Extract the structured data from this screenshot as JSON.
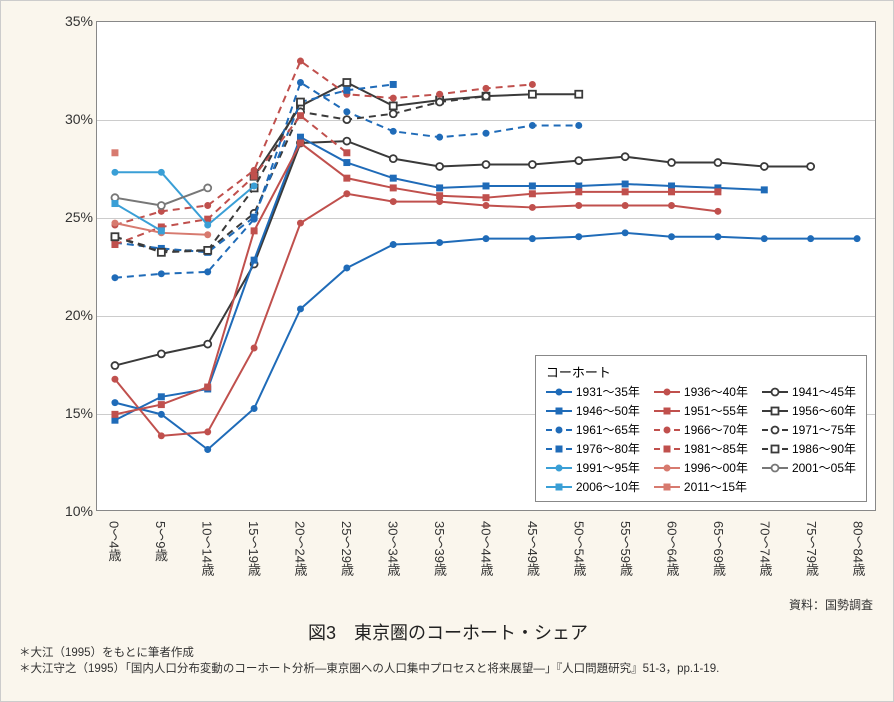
{
  "chart": {
    "type": "line",
    "background_color": "#faf6ed",
    "plot_background": "#ffffff",
    "grid_color": "#cccccc",
    "border_color": "#888888",
    "ylim": [
      10,
      35
    ],
    "ytick_step": 5,
    "yticks": [
      "10%",
      "15%",
      "20%",
      "25%",
      "30%",
      "35%"
    ],
    "x_categories": [
      "0～4歳",
      "5～9歳",
      "10～14歳",
      "15～19歳",
      "20～24歳",
      "25～29歳",
      "30～34歳",
      "35～39歳",
      "40～44歳",
      "45～49歳",
      "50～54歳",
      "55～59歳",
      "60～64歳",
      "65～69歳",
      "70～74歳",
      "75～79歳",
      "80～84歳"
    ],
    "legend_title": "コーホート",
    "title_fontsize": 18,
    "label_fontsize": 13,
    "line_width": 2,
    "marker_size": 7,
    "series": [
      {
        "label": "1931～35年",
        "color": "#1f6bb8",
        "dash": "solid",
        "marker": "circle-filled",
        "values": [
          15.5,
          14.9,
          13.1,
          15.2,
          20.3,
          22.4,
          23.6,
          23.7,
          23.9,
          23.9,
          24.0,
          24.2,
          24.0,
          24.0,
          23.9,
          23.9,
          23.9
        ]
      },
      {
        "label": "1936～40年",
        "color": "#c0504d",
        "dash": "solid",
        "marker": "circle-filled",
        "values": [
          16.7,
          13.8,
          14.0,
          18.3,
          24.7,
          26.2,
          25.8,
          25.8,
          25.6,
          25.5,
          25.6,
          25.6,
          25.6,
          25.3,
          null,
          null,
          null
        ]
      },
      {
        "label": "1941～45年",
        "color": "#3a3a3a",
        "dash": "solid",
        "marker": "circle-open",
        "values": [
          17.4,
          18.0,
          18.5,
          22.6,
          28.8,
          28.9,
          28.0,
          27.6,
          27.7,
          27.7,
          27.9,
          28.1,
          27.8,
          27.8,
          27.6,
          27.6,
          null
        ]
      },
      {
        "label": "1946～50年",
        "color": "#1f6bb8",
        "dash": "solid",
        "marker": "square-filled",
        "values": [
          14.6,
          15.8,
          16.2,
          22.8,
          29.1,
          27.8,
          27.0,
          26.5,
          26.6,
          26.6,
          26.6,
          26.7,
          26.6,
          26.5,
          26.4,
          null,
          null
        ]
      },
      {
        "label": "1951～55年",
        "color": "#c0504d",
        "dash": "solid",
        "marker": "square-filled",
        "values": [
          14.9,
          15.4,
          16.3,
          24.3,
          28.8,
          27.0,
          26.5,
          26.1,
          26.0,
          26.2,
          26.3,
          26.3,
          26.3,
          26.3,
          null,
          null,
          null
        ]
      },
      {
        "label": "1956～60年",
        "color": "#3a3a3a",
        "dash": "solid",
        "marker": "square-open",
        "values": [
          null,
          null,
          null,
          27.1,
          30.7,
          31.9,
          30.7,
          31.0,
          31.2,
          31.3,
          31.3,
          null,
          null,
          null,
          null,
          null,
          null
        ]
      },
      {
        "label": "1961～65年",
        "color": "#1f6bb8",
        "dash": "dashed",
        "marker": "circle-filled",
        "values": [
          21.9,
          22.1,
          22.2,
          24.9,
          31.9,
          30.4,
          29.4,
          29.1,
          29.3,
          29.7,
          29.7,
          null,
          null,
          null,
          null,
          null,
          null
        ]
      },
      {
        "label": "1966～70年",
        "color": "#c0504d",
        "dash": "dashed",
        "marker": "circle-filled",
        "values": [
          24.6,
          25.3,
          25.6,
          27.4,
          33.0,
          31.3,
          31.1,
          31.3,
          31.6,
          31.8,
          null,
          null,
          null,
          null,
          null,
          null,
          null
        ]
      },
      {
        "label": "1971～75年",
        "color": "#3a3a3a",
        "dash": "dashed",
        "marker": "circle-open",
        "values": [
          24.0,
          23.3,
          23.3,
          25.2,
          30.4,
          30.0,
          30.3,
          30.9,
          31.2,
          null,
          null,
          null,
          null,
          null,
          null,
          null,
          null
        ]
      },
      {
        "label": "1976～80年",
        "color": "#1f6bb8",
        "dash": "dashed",
        "marker": "square-filled",
        "values": [
          23.7,
          23.4,
          23.2,
          25.0,
          30.9,
          31.5,
          31.8,
          null,
          null,
          null,
          null,
          null,
          null,
          null,
          null,
          null,
          null
        ]
      },
      {
        "label": "1981～85年",
        "color": "#c0504d",
        "dash": "dashed",
        "marker": "square-filled",
        "values": [
          23.6,
          24.5,
          24.9,
          27.1,
          30.2,
          28.3,
          null,
          null,
          null,
          null,
          null,
          null,
          null,
          null,
          null,
          null,
          null
        ]
      },
      {
        "label": "1986～90年",
        "color": "#3a3a3a",
        "dash": "dashed",
        "marker": "square-open",
        "values": [
          24.0,
          23.2,
          23.3,
          26.5,
          30.9,
          null,
          null,
          null,
          null,
          null,
          null,
          null,
          null,
          null,
          null,
          null,
          null
        ]
      },
      {
        "label": "1991～95年",
        "color": "#3a9fd6",
        "dash": "solid",
        "marker": "circle-filled",
        "values": [
          27.3,
          27.3,
          24.6,
          26.6,
          null,
          null,
          null,
          null,
          null,
          null,
          null,
          null,
          null,
          null,
          null,
          null,
          null
        ]
      },
      {
        "label": "1996～00年",
        "color": "#d77a6f",
        "dash": "solid",
        "marker": "circle-filled",
        "values": [
          24.7,
          24.2,
          24.1,
          null,
          null,
          null,
          null,
          null,
          null,
          null,
          null,
          null,
          null,
          null,
          null,
          null,
          null
        ]
      },
      {
        "label": "2001～05年",
        "color": "#777777",
        "dash": "solid",
        "marker": "circle-open",
        "values": [
          26.0,
          25.6,
          26.5,
          null,
          null,
          null,
          null,
          null,
          null,
          null,
          null,
          null,
          null,
          null,
          null,
          null,
          null
        ]
      },
      {
        "label": "2006～10年",
        "color": "#3a9fd6",
        "dash": "solid",
        "marker": "square-filled",
        "values": [
          25.7,
          24.3,
          null,
          null,
          null,
          null,
          null,
          null,
          null,
          null,
          null,
          null,
          null,
          null,
          null,
          null,
          null
        ]
      },
      {
        "label": "2011～15年",
        "color": "#d77a6f",
        "dash": "solid",
        "marker": "square-filled",
        "values": [
          28.3,
          null,
          null,
          null,
          null,
          null,
          null,
          null,
          null,
          null,
          null,
          null,
          null,
          null,
          null,
          null,
          null
        ]
      }
    ]
  },
  "source_label": "資料：国勢調査",
  "figure_title": "図3　東京圏のコーホート・シェア",
  "footnote1": "＊大江（1995）をもとに筆者作成",
  "footnote2": "＊大江守之（1995）「国内人口分布変動のコーホート分析―東京圏への人口集中プロセスと将来展望―」『人口問題研究』51-3，pp.1-19."
}
